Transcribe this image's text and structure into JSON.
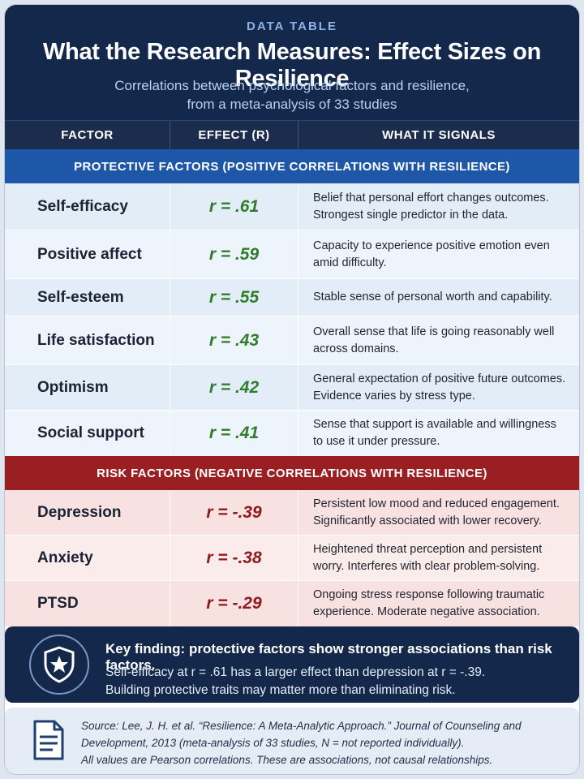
{
  "header": {
    "eyebrow": "DATA TABLE",
    "title": "What the Research Measures: Effect Sizes on Resilience",
    "subtitle_line1": "Correlations between psychological factors and resilience,",
    "subtitle_line2": "from a meta-analysis of 33 studies"
  },
  "columns": {
    "factor": "FACTOR",
    "effect": "EFFECT (R)",
    "signal": "WHAT IT SIGNALS"
  },
  "protective": {
    "label": "PROTECTIVE FACTORS (POSITIVE CORRELATIONS WITH RESILIENCE)",
    "color": "#1e56a8",
    "rows": [
      {
        "factor": "Self-efficacy",
        "effect": "r = .61",
        "signal_1": "Belief that personal effort changes outcomes.",
        "signal_2": "Strongest single predictor in the data."
      },
      {
        "factor": "Positive affect",
        "effect": "r = .59",
        "signal_1": "Capacity to experience positive emotion even",
        "signal_2": "amid difficulty."
      },
      {
        "factor": "Self-esteem",
        "effect": "r = .55",
        "signal_1": "Stable sense of personal worth and capability.",
        "signal_2": ""
      },
      {
        "factor": "Life satisfaction",
        "effect": "r = .43",
        "signal_1": "Overall sense that life is going reasonably well",
        "signal_2": "across domains."
      },
      {
        "factor": "Optimism",
        "effect": "r = .42",
        "signal_1": "General expectation of positive future outcomes.",
        "signal_2": "Evidence varies by stress type."
      },
      {
        "factor": "Social support",
        "effect": "r = .41",
        "signal_1": "Sense that support is available and willingness",
        "signal_2": "to use it under pressure."
      }
    ]
  },
  "risk": {
    "label": "RISK FACTORS  (NEGATIVE CORRELATIONS WITH RESILIENCE)",
    "color": "#9a1f23",
    "rows": [
      {
        "factor": "Depression",
        "effect": "r = -.39",
        "signal_1": "Persistent low mood and reduced engagement.",
        "signal_2": "Significantly associated with lower recovery."
      },
      {
        "factor": "Anxiety",
        "effect": "r = -.38",
        "signal_1": "Heightened threat perception and persistent",
        "signal_2": "worry. Interferes with clear problem-solving."
      },
      {
        "factor": "PTSD",
        "effect": "r = -.29",
        "signal_1": "Ongoing stress response following traumatic",
        "signal_2": "experience. Moderate negative association."
      }
    ]
  },
  "key_finding": {
    "icon": "shield-star-icon",
    "headline": "Key finding: protective factors show stronger associations than risk factors.",
    "line1": "Self-efficacy at r = .61 has a larger effect than depression at r = -.39.",
    "line2": "Building protective traits may matter more than eliminating risk."
  },
  "source": {
    "icon": "document-icon",
    "line1": "Source: Lee, J. H. et al. “Resilience: A Meta-Analytic Approach.” Journal of Counseling and",
    "line2": "Development, 2013 (meta-analysis of 33 studies, N = not reported individually).",
    "line3": "All values are Pearson correlations. These are associations, not causal relationships."
  }
}
